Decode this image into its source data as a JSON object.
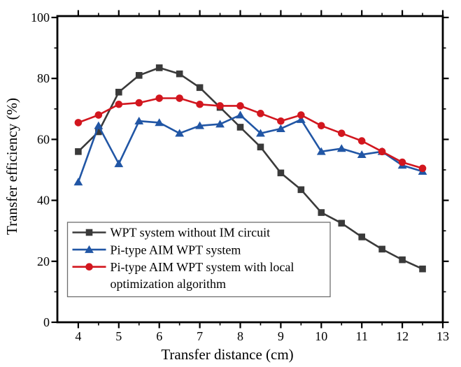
{
  "chart_data": {
    "type": "line",
    "title": "",
    "xlabel": "Transfer distance (cm)",
    "ylabel": "Transfer efficiency (%)",
    "xlim": [
      3.48,
      13
    ],
    "ylim": [
      0,
      100.5
    ],
    "x_major_ticks": [
      4,
      5,
      6,
      7,
      8,
      9,
      10,
      11,
      12,
      13
    ],
    "x_minor_ticks": [
      4.5,
      5.5,
      6.5,
      7.5,
      8.5,
      9.5,
      10.5,
      11.5,
      12.5
    ],
    "y_major_ticks": [
      0,
      20,
      40,
      60,
      80,
      100
    ],
    "y_minor_ticks": [
      10,
      30,
      50,
      70,
      90
    ],
    "grid": false,
    "background_color": "#ffffff",
    "axis_color": "#000000",
    "x": [
      4,
      4.5,
      5,
      5.5,
      6,
      6.5,
      7,
      7.5,
      8,
      8.5,
      9,
      9.5,
      10,
      10.5,
      11,
      11.5,
      12,
      12.5
    ],
    "series": [
      {
        "name": "WPT system without IM circuit",
        "marker": "square",
        "color": "#3a3a3a",
        "values": [
          56,
          62.5,
          75.5,
          81,
          83.5,
          81.5,
          77,
          70.5,
          64,
          57.5,
          49,
          43.5,
          36,
          32.5,
          28,
          24,
          20.5,
          17.5
        ]
      },
      {
        "name": "Pi-type AIM WPT system",
        "marker": "triangle",
        "color": "#2156a5",
        "values": [
          46,
          64.5,
          52,
          66,
          65.5,
          62,
          64.5,
          65,
          68,
          62,
          63.5,
          66.5,
          56,
          57,
          55,
          56,
          51.5,
          49.5
        ]
      },
      {
        "name": "Pi-type AIM WPT system with local optimization algorithm",
        "marker": "circle",
        "color": "#d2161e",
        "values": [
          65.5,
          68,
          71.5,
          72,
          73.5,
          73.5,
          71.5,
          71,
          71,
          68.5,
          66,
          68,
          64.5,
          62,
          59.5,
          56,
          52.5,
          50.5
        ]
      }
    ],
    "legend": {
      "position": "lower-left",
      "border_color": "#6e6e6e",
      "entries": [
        {
          "series": 0,
          "lines": [
            "WPT system without IM circuit"
          ]
        },
        {
          "series": 1,
          "lines": [
            "Pi-type AIM WPT system"
          ]
        },
        {
          "series": 2,
          "lines": [
            "Pi-type AIM WPT system with local",
            "optimization algorithm"
          ]
        }
      ]
    }
  }
}
